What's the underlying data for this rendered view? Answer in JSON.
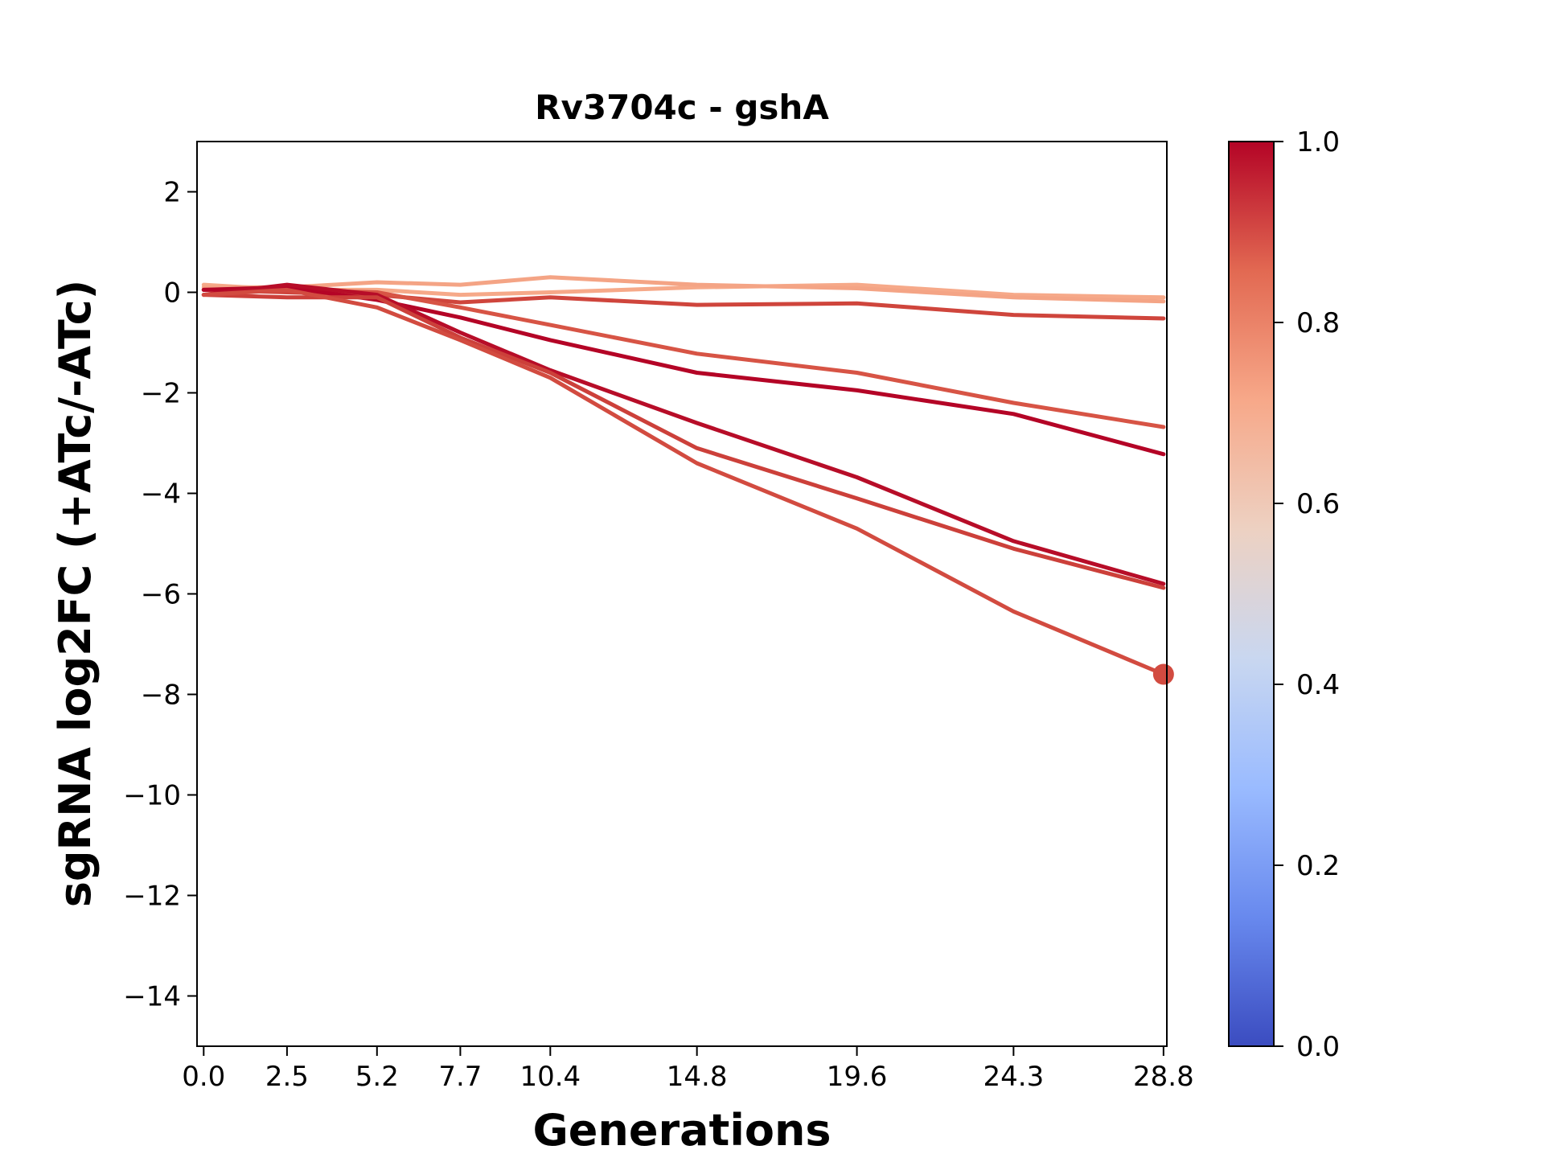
{
  "chart_data": {
    "type": "line",
    "title": "Rv3704c - gshA",
    "xlabel": "Generations",
    "ylabel": "sgRNA log2FC (+ATc/-ATc)",
    "x": [
      0.0,
      2.5,
      5.2,
      7.7,
      10.4,
      14.8,
      19.6,
      24.3,
      28.8
    ],
    "x_tick_labels": [
      "0.0",
      "2.5",
      "5.2",
      "7.7",
      "10.4",
      "14.8",
      "19.6",
      "24.3",
      "28.8"
    ],
    "xlim": [
      -0.2,
      28.9
    ],
    "ylim": [
      -15,
      3
    ],
    "y_ticks": [
      2,
      0,
      -2,
      -4,
      -6,
      -8,
      -10,
      -12,
      -14
    ],
    "y_tick_labels": [
      "2",
      "0",
      "−2",
      "−4",
      "−6",
      "−8",
      "−10",
      "−12",
      "−14"
    ],
    "grid": false,
    "series": [
      {
        "values": [
          0.15,
          0.05,
          0.05,
          -0.05,
          0.0,
          0.1,
          0.15,
          -0.05,
          -0.1
        ],
        "color": "#f6a989"
      },
      {
        "values": [
          0.1,
          0.1,
          0.2,
          0.15,
          0.3,
          0.15,
          0.08,
          -0.1,
          -0.18
        ],
        "color": "#f4a485"
      },
      {
        "values": [
          0.05,
          0.0,
          -0.05,
          -0.2,
          -0.1,
          -0.25,
          -0.22,
          -0.45,
          -0.52
        ],
        "color": "#cf453c"
      },
      {
        "values": [
          0.05,
          0.05,
          0.0,
          -0.3,
          -0.65,
          -1.22,
          -1.6,
          -2.2,
          -2.68
        ],
        "color": "#d75445"
      },
      {
        "values": [
          0.05,
          0.1,
          -0.15,
          -0.5,
          -0.95,
          -1.6,
          -1.95,
          -2.42,
          -3.22
        ],
        "color": "#b40426"
      },
      {
        "values": [
          -0.05,
          0.15,
          -0.05,
          -0.8,
          -1.55,
          -2.6,
          -3.68,
          -4.95,
          -5.8
        ],
        "color": "#b70d28"
      },
      {
        "values": [
          -0.05,
          -0.1,
          -0.1,
          -0.9,
          -1.6,
          -3.1,
          -4.1,
          -5.1,
          -5.88
        ],
        "color": "#cc403a"
      },
      {
        "values": [
          -0.05,
          0.05,
          -0.3,
          -0.95,
          -1.7,
          -3.4,
          -4.7,
          -6.35,
          -7.6
        ],
        "color": "#d24b40",
        "end_marker": true
      }
    ],
    "colorbar": {
      "min": 0.0,
      "max": 1.0,
      "ticks": [
        "0.0",
        "0.2",
        "0.4",
        "0.6",
        "0.8",
        "1.0"
      ],
      "colormap": "coolwarm",
      "stops": [
        "#3b4cc0",
        "#6889ee",
        "#9abbff",
        "#c9d7f0",
        "#edd1c2",
        "#f7a889",
        "#e26952",
        "#b40426"
      ]
    }
  }
}
